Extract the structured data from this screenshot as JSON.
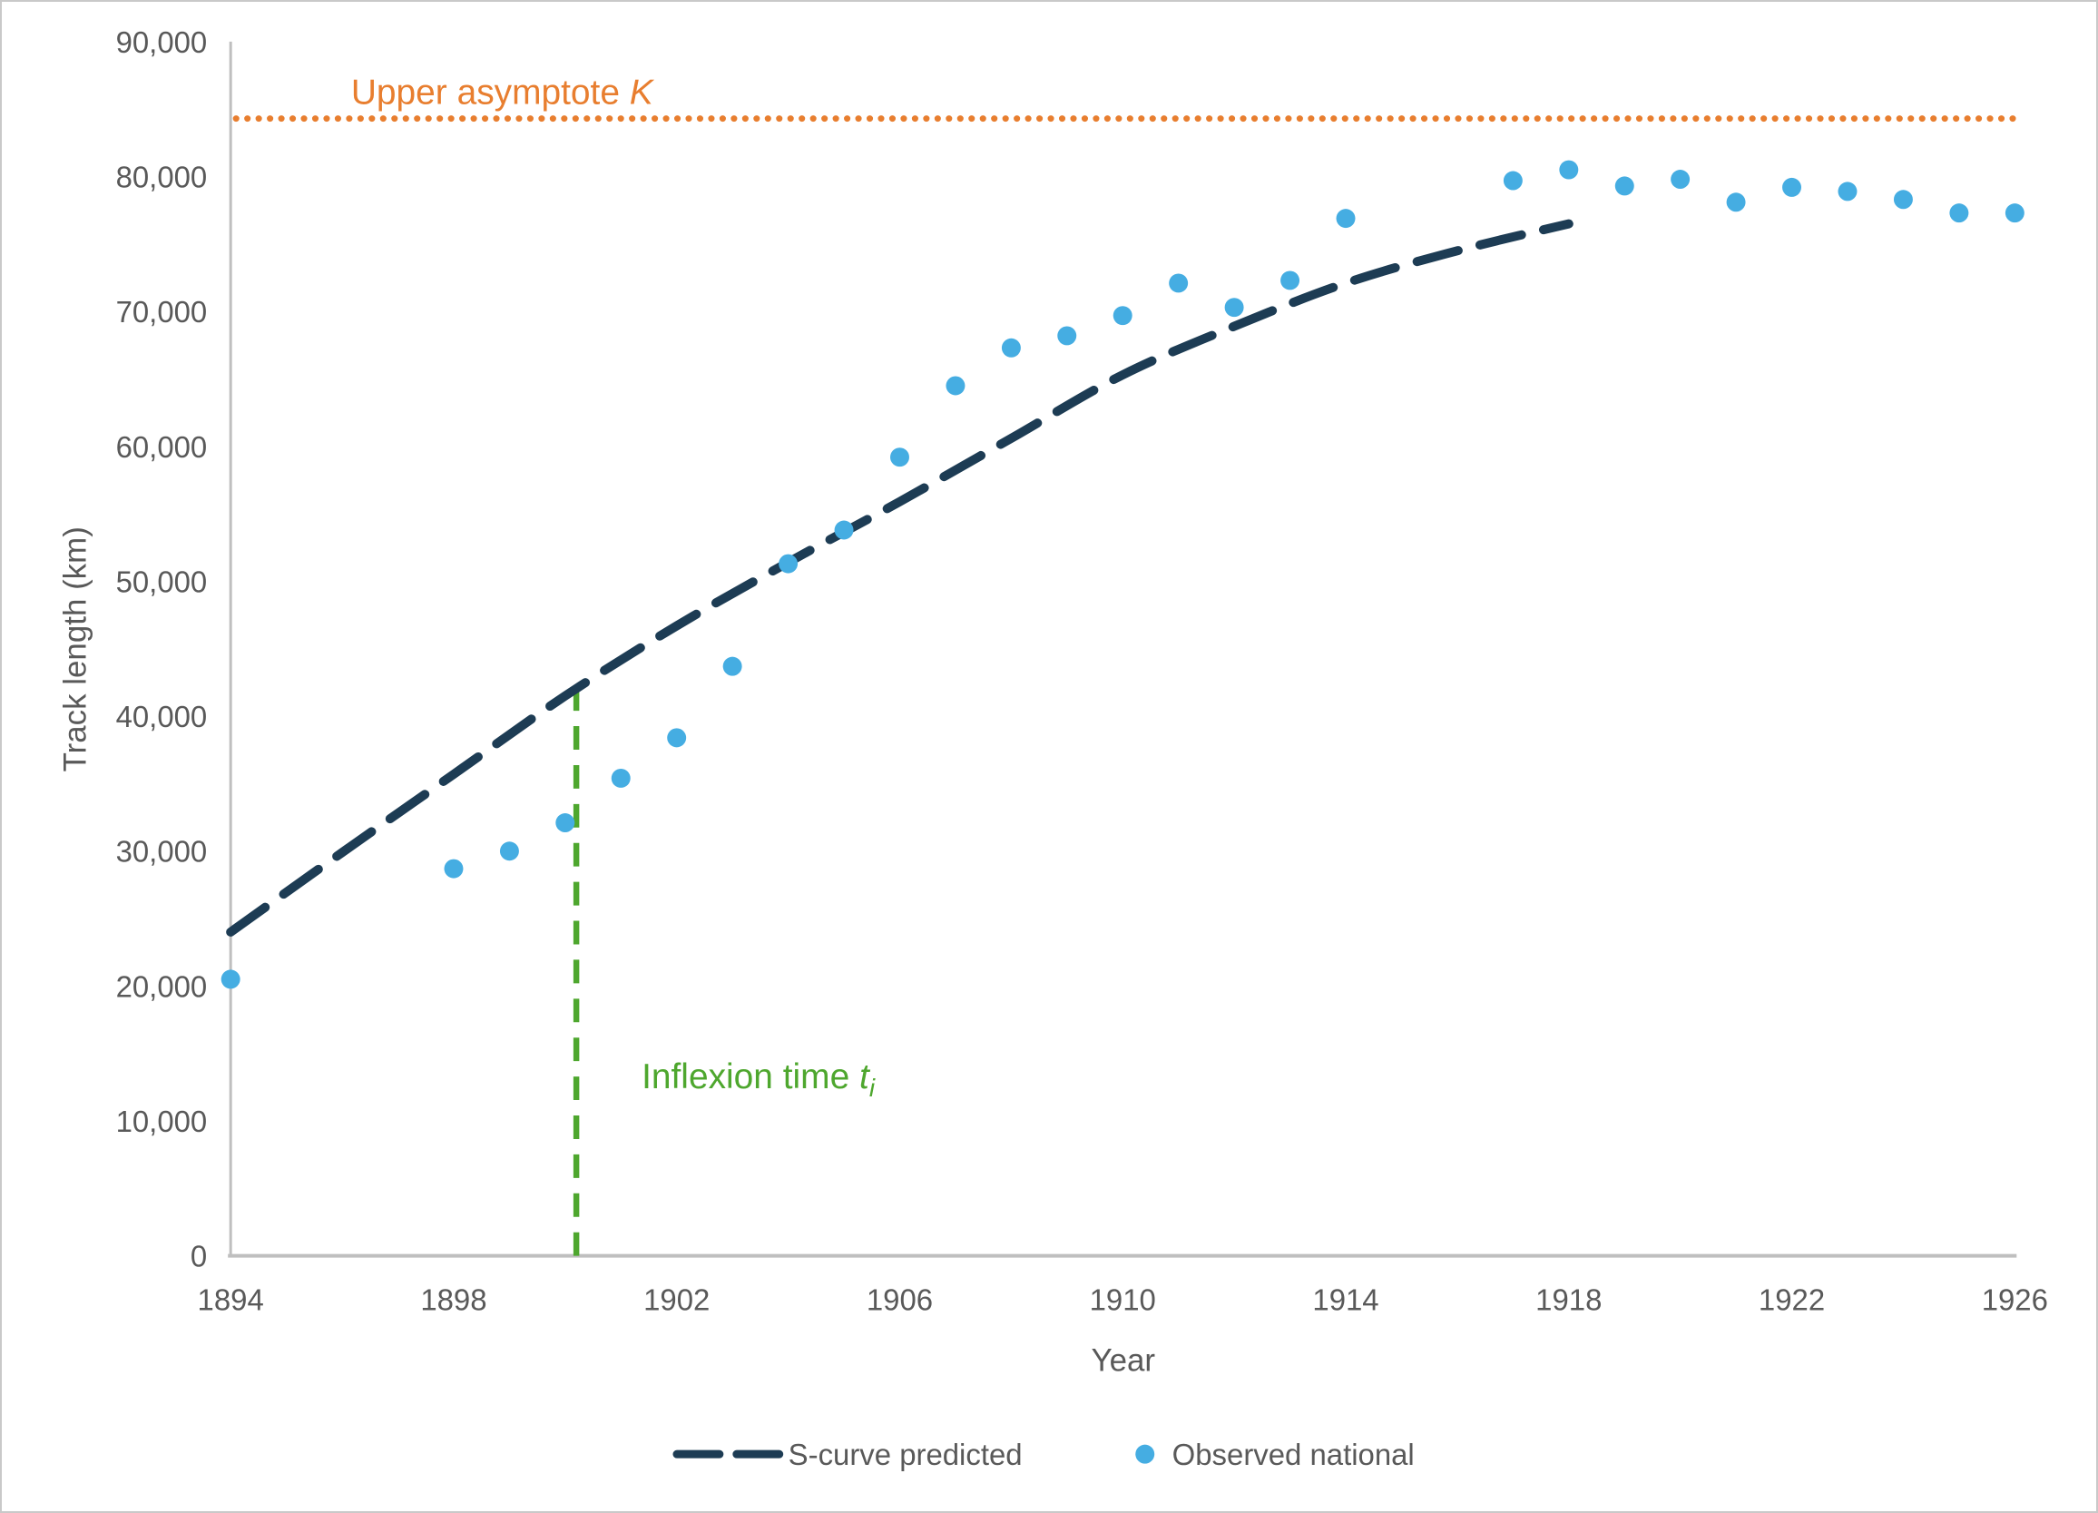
{
  "chart_data": {
    "type": "line",
    "title": "",
    "xlabel": "Year",
    "ylabel": "Track length (km)",
    "xlim": [
      1894,
      1926
    ],
    "ylim": [
      0,
      90000
    ],
    "grid": false,
    "legend_position": "bottom-center",
    "x_ticks": [
      1894,
      1898,
      1902,
      1906,
      1910,
      1914,
      1918,
      1922,
      1926
    ],
    "y_ticks": [
      0,
      10000,
      20000,
      30000,
      40000,
      50000,
      60000,
      70000,
      80000,
      90000
    ],
    "series": [
      {
        "name": "S-curve predicted",
        "type": "dashed-line",
        "color": "#1d3c54",
        "x": [
          1894,
          1896,
          1898,
          1900,
          1902,
          1904,
          1906,
          1908,
          1910,
          1912,
          1914,
          1916,
          1918
        ],
        "y": [
          24000,
          29900,
          35700,
          41500,
          46700,
          51400,
          55900,
          60600,
          65300,
          68900,
          72100,
          74500,
          76500
        ]
      },
      {
        "name": "Observed national",
        "type": "scatter",
        "color": "#45ade2",
        "x": [
          1894,
          1898,
          1899,
          1900,
          1901,
          1902,
          1903,
          1904,
          1905,
          1906,
          1907,
          1908,
          1909,
          1910,
          1911,
          1912,
          1913,
          1914,
          1917,
          1918,
          1919,
          1920,
          1921,
          1922,
          1923,
          1924,
          1925,
          1926
        ],
        "y": [
          20500,
          28700,
          30000,
          32100,
          35400,
          38400,
          43700,
          51300,
          53800,
          59200,
          64500,
          67300,
          68200,
          69700,
          72100,
          70300,
          72300,
          76900,
          79700,
          80500,
          79300,
          79800,
          78100,
          79200,
          78900,
          78300,
          77300,
          77300
        ]
      }
    ],
    "annotations": {
      "upper_asymptote": {
        "text": "Upper asymptote ",
        "symbol": "K",
        "value": 84300,
        "color": "#e87e2f"
      },
      "inflexion_time": {
        "text": "Inflexion time ",
        "symbol": "t",
        "subscript": "i",
        "year": 1900.2,
        "top_value": 42150,
        "color": "#4ea72e"
      }
    },
    "colors": {
      "axis_line": "#bfbfbf",
      "axis_text": "#595959"
    }
  },
  "legend": {
    "items": [
      {
        "label": "S-curve predicted"
      },
      {
        "label": "Observed national"
      }
    ]
  }
}
